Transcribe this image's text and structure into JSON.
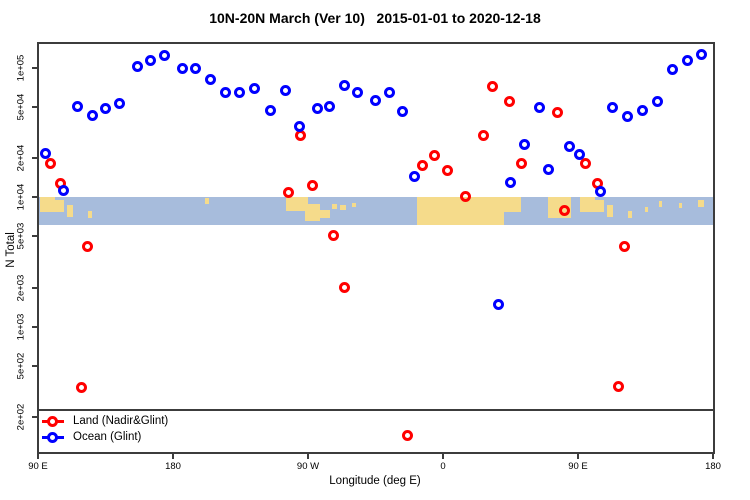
{
  "title": "10N-20N March (Ver 10)   2015-01-01 to 2020-12-18",
  "colors": {
    "land_series": "#ff0000",
    "ocean_series": "#0000ff",
    "map_ocean": "#a7bcdc",
    "map_land": "#f5db8b",
    "axis": "#3c3c3c"
  },
  "chart_data": {
    "type": "scatter",
    "title": "10N-20N March (Ver 10)   2015-01-01 to 2020-12-18",
    "xlabel": "Longitude (deg E)",
    "ylabel": "N Total",
    "x_axis": {
      "unit": "deg E",
      "tick_lons": [
        90,
        180,
        270,
        360,
        450,
        540
      ],
      "tick_labels": [
        "90 E",
        "180",
        "90 W",
        "0",
        "90 E",
        "180"
      ],
      "range": [
        90,
        540
      ]
    },
    "y_axis": {
      "scale": "log10",
      "tick_values": [
        100000,
        50000,
        20000,
        10000,
        5000,
        2000,
        1000,
        500,
        200
      ],
      "tick_labels": [
        "1e+05",
        "5e+04",
        "2e+04",
        "1e+04",
        "5e+03",
        "2e+03",
        "1e+03",
        "5e+02",
        "2e+02"
      ],
      "range": [
        110,
        156000
      ]
    },
    "grid": false,
    "legend_position": "bottom-left",
    "legend": [
      {
        "label": "Land (Nadir&Glint)",
        "color": "#ff0000"
      },
      {
        "label": "Ocean (Glint)",
        "color": "#0000ff"
      }
    ],
    "reference_line_n": 230,
    "map_strip": {
      "n_top": 10000,
      "n_bottom": 6100,
      "ocean_color": "#a7bcdc",
      "land_color": "#f5db8b",
      "land_patches": [
        {
          "lon0": 91,
          "lon1": 101.3,
          "t": 0,
          "h": 0.55
        },
        {
          "lon0": 101,
          "lon1": 107,
          "t": 0.1,
          "h": 0.45
        },
        {
          "lon0": 109,
          "lon1": 113,
          "t": 0.3,
          "h": 0.4
        },
        {
          "lon0": 123,
          "lon1": 126,
          "t": 0.5,
          "h": 0.25
        },
        {
          "lon0": 201,
          "lon1": 204,
          "t": 0.05,
          "h": 0.2
        },
        {
          "lon0": 255,
          "lon1": 270,
          "t": 0,
          "h": 0.5
        },
        {
          "lon0": 268,
          "lon1": 278,
          "t": 0.25,
          "h": 0.6
        },
        {
          "lon0": 278,
          "lon1": 284.7,
          "t": 0.45,
          "h": 0.3
        },
        {
          "lon0": 286,
          "lon1": 289,
          "t": 0.25,
          "h": 0.18
        },
        {
          "lon0": 291.3,
          "lon1": 295.3,
          "t": 0.3,
          "h": 0.15
        },
        {
          "lon0": 299.3,
          "lon1": 302,
          "t": 0.2,
          "h": 0.15
        },
        {
          "lon0": 342.7,
          "lon1": 400.7,
          "t": 0,
          "h": 1.0
        },
        {
          "lon0": 400,
          "lon1": 412,
          "t": 0,
          "h": 0.55
        },
        {
          "lon0": 430,
          "lon1": 445,
          "t": 0,
          "h": 0.75
        },
        {
          "lon0": 451,
          "lon1": 461.3,
          "t": 0,
          "h": 0.55
        },
        {
          "lon0": 461,
          "lon1": 467,
          "t": 0.1,
          "h": 0.45
        },
        {
          "lon0": 469,
          "lon1": 473,
          "t": 0.3,
          "h": 0.4
        },
        {
          "lon0": 483,
          "lon1": 486,
          "t": 0.5,
          "h": 0.25
        },
        {
          "lon0": 494.7,
          "lon1": 496.7,
          "t": 0.35,
          "h": 0.2
        },
        {
          "lon0": 503.7,
          "lon1": 506.3,
          "t": 0.15,
          "h": 0.2
        },
        {
          "lon0": 517,
          "lon1": 519.6,
          "t": 0.2,
          "h": 0.2
        },
        {
          "lon0": 530,
          "lon1": 534,
          "t": 0.1,
          "h": 0.25
        }
      ]
    },
    "series": [
      {
        "name": "Land (Nadir&Glint)",
        "color": "#ff0000",
        "points": [
          [
            98,
            18400
          ],
          [
            105.3,
            12700
          ],
          [
            123.3,
            4200
          ],
          [
            118.7,
            341
          ],
          [
            257.3,
            10800
          ],
          [
            265.3,
            29800
          ],
          [
            272.7,
            12400
          ],
          [
            286.7,
            5020
          ],
          [
            294,
            1990
          ],
          [
            336,
            143
          ],
          [
            346,
            17500
          ],
          [
            354,
            21200
          ],
          [
            363.3,
            16000
          ],
          [
            374.7,
            10200
          ],
          [
            386.7,
            30300
          ],
          [
            393.3,
            71300
          ],
          [
            404,
            54600
          ],
          [
            412,
            18100
          ],
          [
            436,
            44900
          ],
          [
            440.7,
            7840
          ],
          [
            455.3,
            18400
          ],
          [
            462.7,
            12700
          ],
          [
            477.3,
            344
          ],
          [
            480.7,
            4200
          ]
        ]
      },
      {
        "name": "Ocean (Glint)",
        "color": "#0000ff",
        "points": [
          [
            94.7,
            22000
          ],
          [
            107.3,
            11200
          ],
          [
            116,
            50800
          ],
          [
            126,
            42600
          ],
          [
            135.3,
            48200
          ],
          [
            144,
            53600
          ],
          [
            156,
            102000
          ],
          [
            164.7,
            115000
          ],
          [
            174,
            126000
          ],
          [
            186,
            100000
          ],
          [
            194.7,
            100000
          ],
          [
            204.7,
            82200
          ],
          [
            214.7,
            65200
          ],
          [
            224,
            65200
          ],
          [
            234,
            70000
          ],
          [
            244.7,
            46500
          ],
          [
            254.7,
            66400
          ],
          [
            264,
            35000
          ],
          [
            276,
            48200
          ],
          [
            284,
            50800
          ],
          [
            294,
            72600
          ],
          [
            303.3,
            64100
          ],
          [
            315.3,
            55600
          ],
          [
            324,
            64100
          ],
          [
            333.3,
            45700
          ],
          [
            340.7,
            14400
          ],
          [
            397.3,
            1470
          ],
          [
            404.7,
            13100
          ],
          [
            414,
            25800
          ],
          [
            424,
            49900
          ],
          [
            430,
            16300
          ],
          [
            444,
            24500
          ],
          [
            451.3,
            21600
          ],
          [
            465.3,
            11000
          ],
          [
            473.3,
            49100
          ],
          [
            483.3,
            41800
          ],
          [
            493.3,
            47300
          ],
          [
            503.3,
            54600
          ],
          [
            513.3,
            98200
          ],
          [
            522.7,
            115000
          ],
          [
            532,
            128000
          ]
        ]
      }
    ]
  }
}
